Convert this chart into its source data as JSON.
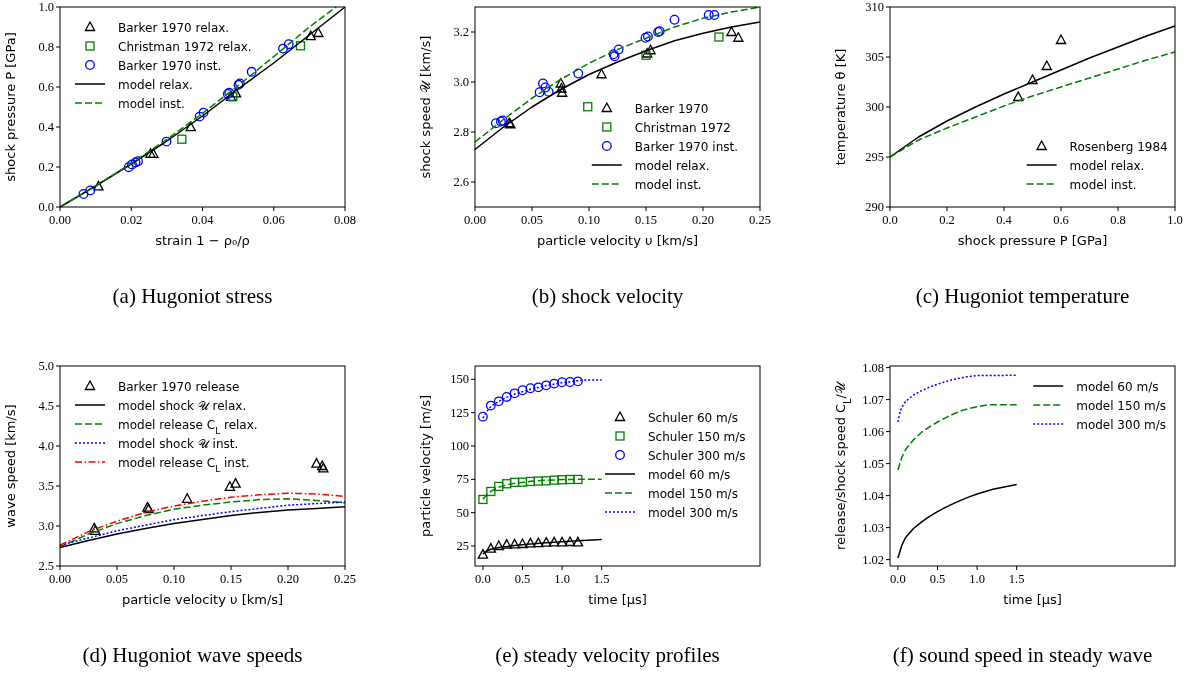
{
  "chart_data": [
    {
      "type": "scatter",
      "title": "(a) Hugoniot stress",
      "xlabel": "strain 1 − ρ₀/ρ",
      "ylabel": "shock pressure P [GPa]",
      "xlim": [
        0,
        0.08
      ],
      "ylim": [
        0,
        1.0
      ],
      "xticks": [
        {
          "value": 0,
          "label": "0.00"
        },
        {
          "value": 0.02,
          "label": "0.02"
        },
        {
          "value": 0.04,
          "label": "0.04"
        },
        {
          "value": 0.06,
          "label": "0.06"
        },
        {
          "value": 0.08,
          "label": "0.08"
        }
      ],
      "yticks": [
        {
          "value": 0,
          "label": "0.0"
        },
        0.2,
        0.4,
        0.6,
        0.8,
        {
          "value": 1,
          "label": "1.0"
        }
      ],
      "grid": false,
      "legend": "top left",
      "series": [
        {
          "name": "Barker 1970 relax.",
          "marker": "triangle",
          "color": "#000000",
          "x": [
            0.0108,
            0.0254,
            0.0262,
            0.0367,
            0.048,
            0.0494,
            0.0704,
            0.0725
          ],
          "values": [
            0.103,
            0.266,
            0.266,
            0.399,
            0.551,
            0.568,
            0.854,
            0.87
          ]
        },
        {
          "name": "Christman 1972 relax.",
          "marker": "square",
          "color": "#008000",
          "x": [
            0.0342,
            0.0485,
            0.0675
          ],
          "values": [
            0.339,
            0.551,
            0.806
          ]
        },
        {
          "name": "Barker 1970 inst.",
          "marker": "circle",
          "color": "#0000ff",
          "x": [
            0.0066,
            0.0085,
            0.0193,
            0.0202,
            0.0212,
            0.0219,
            0.0299,
            0.0392,
            0.0403,
            0.0471,
            0.0475,
            0.0501,
            0.0505,
            0.0538,
            0.0626,
            0.0642
          ],
          "values": [
            0.065,
            0.083,
            0.199,
            0.213,
            0.223,
            0.229,
            0.327,
            0.452,
            0.472,
            0.565,
            0.571,
            0.611,
            0.618,
            0.676,
            0.792,
            0.814
          ]
        },
        {
          "name": "model relax.",
          "type": "line",
          "line_style": "solid",
          "color": "#000000",
          "x": [
            0,
            0.01,
            0.02,
            0.03,
            0.04,
            0.05,
            0.06,
            0.07,
            0.08
          ],
          "values": [
            0,
            0.105,
            0.215,
            0.33,
            0.455,
            0.59,
            0.72,
            0.86,
            1.0
          ]
        },
        {
          "name": "model inst.",
          "type": "line",
          "line_style": "dashed",
          "color": "#008000",
          "x": [
            0,
            0.01,
            0.02,
            0.03,
            0.04,
            0.05,
            0.06,
            0.07,
            0.0775
          ],
          "values": [
            0,
            0.105,
            0.218,
            0.338,
            0.468,
            0.607,
            0.752,
            0.9,
            1.0
          ]
        }
      ]
    },
    {
      "type": "scatter",
      "title": "(b) shock velocity",
      "xlabel": "particle velocity υ [km/s]",
      "ylabel": "shock speed 𝒰 [km/s]",
      "xlim": [
        0,
        0.25
      ],
      "ylim": [
        2.5,
        3.3
      ],
      "xticks": [
        {
          "value": 0,
          "label": "0.00"
        },
        {
          "value": 0.05,
          "label": "0.05"
        },
        {
          "value": 0.1,
          "label": "0.10"
        },
        {
          "value": 0.15,
          "label": "0.15"
        },
        {
          "value": 0.2,
          "label": "0.20"
        },
        {
          "value": 0.25,
          "label": "0.25"
        }
      ],
      "yticks": [
        2.6,
        2.8,
        {
          "value": 3,
          "label": "3.0"
        },
        3.2
      ],
      "grid": false,
      "legend": "bottom right",
      "series": [
        {
          "name": "Barker 1970",
          "marker": "triangle",
          "color": "#000000",
          "x": [
            0.03,
            0.031,
            0.0753,
            0.0758,
            0.0764,
            0.111,
            0.151,
            0.154,
            0.225,
            0.231
          ],
          "values": [
            2.835,
            2.831,
            2.994,
            2.974,
            2.957,
            3.031,
            3.114,
            3.127,
            3.2,
            3.177
          ]
        },
        {
          "name": "Christman 1972",
          "marker": "square",
          "color": "#008000",
          "x": [
            0.0989,
            0.15,
            0.214
          ],
          "values": [
            2.901,
            3.107,
            3.18
          ]
        },
        {
          "name": "Barker 1970 inst.",
          "marker": "circle",
          "color": "#0000ff",
          "x": [
            0.0183,
            0.0227,
            0.0242,
            0.0567,
            0.0596,
            0.0617,
            0.0646,
            0.0906,
            0.1216,
            0.1225,
            0.126,
            0.1496,
            0.1517,
            0.1606,
            0.162,
            0.175,
            0.205,
            0.21
          ],
          "values": [
            2.835,
            2.842,
            2.846,
            2.959,
            2.994,
            2.978,
            2.961,
            3.034,
            3.111,
            3.103,
            3.13,
            3.177,
            3.182,
            3.2,
            3.203,
            3.249,
            3.268,
            3.268
          ]
        },
        {
          "name": "model relax.",
          "type": "line",
          "line_style": "solid",
          "color": "#000000",
          "x": [
            0,
            0.025,
            0.05,
            0.075,
            0.1,
            0.125,
            0.15,
            0.175,
            0.2,
            0.225,
            0.25
          ],
          "values": [
            2.73,
            2.82,
            2.9,
            2.97,
            3.03,
            3.08,
            3.125,
            3.165,
            3.195,
            3.22,
            3.24
          ]
        },
        {
          "name": "model inst.",
          "type": "line",
          "line_style": "dashed",
          "color": "#008000",
          "x": [
            0,
            0.025,
            0.05,
            0.075,
            0.1,
            0.125,
            0.15,
            0.175,
            0.2,
            0.225,
            0.25
          ],
          "values": [
            2.76,
            2.85,
            2.935,
            3.01,
            3.075,
            3.13,
            3.175,
            3.22,
            3.255,
            3.28,
            3.3
          ]
        }
      ]
    },
    {
      "type": "scatter",
      "title": "(c) Hugoniot temperature",
      "xlabel": "shock pressure P [GPa]",
      "ylabel": "temperature θ [K]",
      "xlim": [
        0,
        1.0
      ],
      "ylim": [
        290,
        310
      ],
      "xticks": [
        {
          "value": 0,
          "label": "0.0"
        },
        0.2,
        0.4,
        0.6,
        0.8,
        {
          "value": 1,
          "label": "1.0"
        }
      ],
      "yticks": [
        290,
        295,
        300,
        305,
        310
      ],
      "grid": false,
      "legend": "bottom right",
      "series": [
        {
          "name": "Rosenberg 1984",
          "marker": "triangle",
          "color": "#000000",
          "x": [
            0.45,
            0.5,
            0.55,
            0.6
          ],
          "values": [
            301.0,
            302.7,
            304.1,
            306.7
          ]
        },
        {
          "name": "model relax.",
          "type": "line",
          "line_style": "solid",
          "color": "#000000",
          "x": [
            0,
            0.1,
            0.2,
            0.3,
            0.4,
            0.5,
            0.6,
            0.7,
            0.8,
            0.9,
            1.0
          ],
          "values": [
            295,
            297.0,
            298.6,
            300.0,
            301.3,
            302.5,
            303.7,
            304.9,
            306.0,
            307.1,
            308.1
          ]
        },
        {
          "name": "model inst.",
          "type": "line",
          "line_style": "dashed",
          "color": "#008000",
          "x": [
            0,
            0.1,
            0.2,
            0.3,
            0.4,
            0.5,
            0.6,
            0.7,
            0.8,
            0.9,
            1.0
          ],
          "values": [
            295,
            296.7,
            297.9,
            299.0,
            300.1,
            301.1,
            302.0,
            302.9,
            303.8,
            304.7,
            305.5
          ]
        }
      ]
    },
    {
      "type": "scatter",
      "title": "(d) Hugoniot wave speeds",
      "xlabel": "particle velocity υ [km/s]",
      "ylabel": "wave speed [km/s]",
      "xlim": [
        0,
        0.25
      ],
      "ylim": [
        2.5,
        5.0
      ],
      "xticks": [
        {
          "value": 0,
          "label": "0.00"
        },
        {
          "value": 0.05,
          "label": "0.05"
        },
        {
          "value": 0.1,
          "label": "0.10"
        },
        {
          "value": 0.15,
          "label": "0.15"
        },
        {
          "value": 0.2,
          "label": "0.20"
        },
        {
          "value": 0.25,
          "label": "0.25"
        }
      ],
      "yticks": [
        2.5,
        {
          "value": 3,
          "label": "3.0"
        },
        3.5,
        {
          "value": 4,
          "label": "4.0"
        },
        4.5,
        {
          "value": 5,
          "label": "5.0"
        }
      ],
      "grid": false,
      "legend": "top left",
      "series": [
        {
          "name": "Barker 1970 release",
          "marker": "triangle",
          "color": "#000000",
          "x": [
            0.03,
            0.031,
            0.0767,
            0.0778,
            0.1116,
            0.149,
            0.154,
            0.225,
            0.23,
            0.231
          ],
          "values": [
            2.97,
            2.94,
            3.23,
            3.21,
            3.34,
            3.49,
            3.53,
            3.78,
            3.75,
            3.72
          ]
        },
        {
          "name": "model shock 𝒰 relax.",
          "type": "line",
          "line_style": "solid",
          "color": "#000000",
          "x": [
            0,
            0.025,
            0.05,
            0.075,
            0.1,
            0.125,
            0.15,
            0.175,
            0.2,
            0.225,
            0.25
          ],
          "values": [
            2.73,
            2.82,
            2.9,
            2.97,
            3.03,
            3.08,
            3.13,
            3.17,
            3.2,
            3.22,
            3.24
          ]
        },
        {
          "name": "model release C$_{L}$ relax.",
          "type": "line",
          "line_style": "dashed",
          "color": "#008000",
          "x": [
            0,
            0.025,
            0.05,
            0.075,
            0.1,
            0.125,
            0.15,
            0.175,
            0.2,
            0.225,
            0.25
          ],
          "values": [
            2.74,
            2.9,
            3.03,
            3.13,
            3.21,
            3.26,
            3.3,
            3.33,
            3.34,
            3.32,
            3.29
          ]
        },
        {
          "name": "model shock 𝒰 inst.",
          "type": "line",
          "line_style": "dotted",
          "color": "#0000ff",
          "x": [
            0,
            0.025,
            0.05,
            0.075,
            0.1,
            0.125,
            0.15,
            0.175,
            0.2,
            0.225,
            0.25
          ],
          "values": [
            2.76,
            2.85,
            2.94,
            3.01,
            3.08,
            3.13,
            3.18,
            3.22,
            3.26,
            3.28,
            3.3
          ]
        },
        {
          "name": "model release C$_{L}$ inst.",
          "type": "line",
          "line_style": "dashdot",
          "color": "#ff0000",
          "x": [
            0,
            0.025,
            0.05,
            0.075,
            0.1,
            0.125,
            0.15,
            0.175,
            0.2,
            0.225,
            0.25
          ],
          "values": [
            2.76,
            2.93,
            3.06,
            3.17,
            3.25,
            3.31,
            3.36,
            3.39,
            3.41,
            3.4,
            3.37
          ]
        }
      ]
    },
    {
      "type": "scatter",
      "title": "(e) steady velocity profiles",
      "xlabel": "time [μs]",
      "ylabel": "particle velocity [m/s]",
      "xlim": [
        -0.1,
        3.5
      ],
      "ylim": [
        10,
        160
      ],
      "xticks": [
        {
          "value": 0,
          "label": "0.0"
        },
        0.5,
        {
          "value": 1,
          "label": "1.0"
        },
        1.5
      ],
      "yticks": [
        25,
        50,
        75,
        100,
        125,
        150
      ],
      "grid": false,
      "legend": "center right",
      "series": [
        {
          "name": "Schuler 60 m/s",
          "marker": "triangle",
          "color": "#000000",
          "x": [
            0,
            0.1,
            0.2,
            0.3,
            0.4,
            0.5,
            0.6,
            0.7,
            0.8,
            0.9,
            1.0,
            1.1,
            1.2
          ],
          "values": [
            18.5,
            23,
            25,
            26,
            26.2,
            26.5,
            27,
            27.2,
            27.5,
            27.7,
            27.7,
            28,
            27.7
          ]
        },
        {
          "name": "Schuler 150 m/s",
          "marker": "square",
          "color": "#008000",
          "x": [
            0,
            0.1,
            0.2,
            0.3,
            0.4,
            0.5,
            0.6,
            0.7,
            0.8,
            0.9,
            1.0,
            1.1,
            1.2
          ],
          "values": [
            59.9,
            65.9,
            69.7,
            71.7,
            72.7,
            72.9,
            73.4,
            73.7,
            73.9,
            74.4,
            74.7,
            74.9,
            74.9
          ]
        },
        {
          "name": "Schuler 300 m/s",
          "marker": "circle",
          "color": "#0000ff",
          "x": [
            0,
            0.1,
            0.2,
            0.3,
            0.4,
            0.5,
            0.6,
            0.7,
            0.8,
            0.9,
            1.0,
            1.1,
            1.2
          ],
          "values": [
            122,
            130.3,
            133.5,
            136.8,
            139.5,
            141.8,
            143.3,
            144,
            145.5,
            146.8,
            147.8,
            148,
            148.5
          ]
        },
        {
          "name": "model 60 m/s",
          "type": "line",
          "line_style": "solid",
          "color": "#000000",
          "x": [
            0,
            0.05,
            0.1,
            0.2,
            0.4,
            0.6,
            0.8,
            1.0,
            1.2,
            1.5
          ],
          "values": [
            19,
            21.5,
            22.5,
            23.8,
            25.3,
            26.5,
            27.4,
            28.2,
            28.9,
            29.8
          ]
        },
        {
          "name": "model 150 m/s",
          "type": "line",
          "line_style": "dashed",
          "color": "#008000",
          "x": [
            0,
            0.05,
            0.1,
            0.2,
            0.3,
            0.4,
            0.6,
            0.8,
            1.0,
            1.2,
            1.5
          ],
          "values": [
            60,
            63.5,
            66,
            69,
            70.8,
            72,
            73.5,
            74.3,
            74.8,
            75,
            75
          ]
        },
        {
          "name": "model 300 m/s",
          "type": "line",
          "line_style": "dotted",
          "color": "#0000ff",
          "x": [
            0,
            0.05,
            0.1,
            0.2,
            0.3,
            0.4,
            0.6,
            0.8,
            1.0,
            1.2,
            1.3,
            1.5
          ],
          "values": [
            121,
            126,
            129.5,
            133.5,
            136.5,
            139,
            142.5,
            145.3,
            147.5,
            149,
            149.5,
            149.6
          ]
        }
      ]
    },
    {
      "type": "line",
      "title": "(f) sound speed in steady wave",
      "xlabel": "time [μs]",
      "ylabel": "release/shock speed C$_{L}$/𝒰",
      "xlim": [
        -0.1,
        3.5
      ],
      "ylim": [
        1.018,
        1.0805
      ],
      "xticks": [
        {
          "value": 0,
          "label": "0.0"
        },
        0.5,
        {
          "value": 1,
          "label": "1.0"
        },
        1.5
      ],
      "yticks": [
        1.02,
        1.03,
        1.04,
        1.05,
        1.06,
        1.07,
        1.08
      ],
      "grid": false,
      "legend": "top right",
      "series": [
        {
          "name": "model 60 m/s",
          "line_style": "solid",
          "color": "#000000",
          "x": [
            0,
            0.05,
            0.1,
            0.2,
            0.3,
            0.4,
            0.5,
            0.6,
            0.7,
            0.8,
            0.9,
            1.0,
            1.2,
            1.5
          ],
          "values": [
            1.0205,
            1.0245,
            1.027,
            1.0298,
            1.0318,
            1.0335,
            1.035,
            1.0363,
            1.0375,
            1.0386,
            1.0396,
            1.0405,
            1.042,
            1.0435
          ]
        },
        {
          "name": "model 150 m/s",
          "line_style": "dashed",
          "color": "#008000",
          "x": [
            0,
            0.05,
            0.1,
            0.2,
            0.3,
            0.4,
            0.5,
            0.6,
            0.7,
            0.8,
            0.9,
            1.0,
            1.15,
            1.5
          ],
          "values": [
            1.048,
            1.052,
            1.0545,
            1.0575,
            1.0598,
            1.0615,
            1.063,
            1.0643,
            1.0655,
            1.0665,
            1.0672,
            1.0678,
            1.0684,
            1.0684
          ]
        },
        {
          "name": "model 300 m/s",
          "line_style": "dotted",
          "color": "#0000ff",
          "x": [
            0,
            0.03,
            0.07,
            0.1,
            0.2,
            0.3,
            0.4,
            0.5,
            0.6,
            0.7,
            0.8,
            0.9,
            1.0,
            1.5
          ],
          "values": [
            1.063,
            1.0665,
            1.0685,
            1.0695,
            1.0715,
            1.0728,
            1.0739,
            1.0748,
            1.0756,
            1.0763,
            1.0768,
            1.0772,
            1.0775,
            1.0776
          ]
        }
      ]
    }
  ]
}
